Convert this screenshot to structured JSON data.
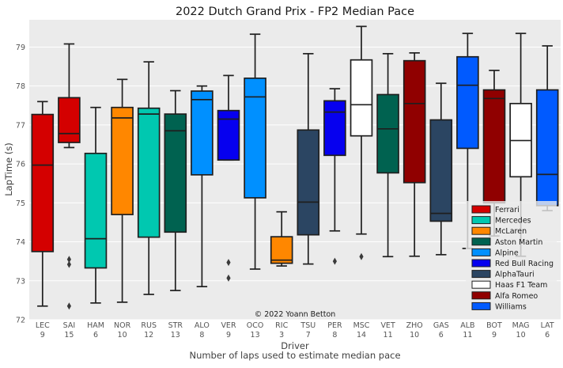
{
  "chart_data": {
    "type": "boxplot",
    "title": "2022 Dutch Grand Prix - FP2 Median Pace",
    "ylabel": "LapTime (s)",
    "xlabel": "Driver",
    "xlabel2": "Number of laps used to estimate median pace",
    "ylim": [
      72,
      79.7
    ],
    "yticks": [
      72,
      73,
      74,
      75,
      76,
      77,
      78,
      79
    ],
    "grid": true,
    "legend_position": "bottom-right",
    "credit": "© 2022 Yoann Betton",
    "teams": [
      {
        "name": "Ferrari",
        "color": "#d40000"
      },
      {
        "name": "Mercedes",
        "color": "#00c8b0"
      },
      {
        "name": "McLaren",
        "color": "#ff8700"
      },
      {
        "name": "Aston Martin",
        "color": "#006250"
      },
      {
        "name": "Alpine",
        "color": "#0090ff"
      },
      {
        "name": "Red Bull Racing",
        "color": "#0600ef"
      },
      {
        "name": "AlphaTauri",
        "color": "#2b4562"
      },
      {
        "name": "Haas F1 Team",
        "color": "#ffffff"
      },
      {
        "name": "Alfa Romeo",
        "color": "#900000"
      },
      {
        "name": "Williams",
        "color": "#005aff"
      }
    ],
    "drivers": [
      {
        "driver": "LEC",
        "laps": "9",
        "team": 0,
        "whislo": 72.35,
        "q1": 73.75,
        "med": 75.97,
        "q3": 77.27,
        "whishi": 77.6,
        "fliers": []
      },
      {
        "driver": "SAI",
        "laps": "15",
        "team": 0,
        "whislo": 76.42,
        "q1": 76.55,
        "med": 76.78,
        "q3": 77.7,
        "whishi": 79.08,
        "fliers": [
          72.35,
          73.42,
          73.55
        ]
      },
      {
        "driver": "HAM",
        "laps": "6",
        "team": 1,
        "whislo": 72.43,
        "q1": 73.33,
        "med": 74.08,
        "q3": 76.27,
        "whishi": 77.45,
        "fliers": []
      },
      {
        "driver": "NOR",
        "laps": "10",
        "team": 2,
        "whislo": 72.45,
        "q1": 74.7,
        "med": 77.18,
        "q3": 77.45,
        "whishi": 78.17,
        "fliers": []
      },
      {
        "driver": "RUS",
        "laps": "12",
        "team": 1,
        "whislo": 72.65,
        "q1": 74.12,
        "med": 77.28,
        "q3": 77.43,
        "whishi": 78.62,
        "fliers": []
      },
      {
        "driver": "STR",
        "laps": "13",
        "team": 3,
        "whislo": 72.75,
        "q1": 74.25,
        "med": 76.85,
        "q3": 77.28,
        "whishi": 77.88,
        "fliers": []
      },
      {
        "driver": "ALO",
        "laps": "8",
        "team": 4,
        "whislo": 72.85,
        "q1": 75.72,
        "med": 77.65,
        "q3": 77.87,
        "whishi": 78.0,
        "fliers": []
      },
      {
        "driver": "VER",
        "laps": "9",
        "team": 5,
        "whislo": 76.1,
        "q1": 76.1,
        "med": 77.15,
        "q3": 77.37,
        "whishi": 78.27,
        "fliers": [
          73.07,
          73.47
        ]
      },
      {
        "driver": "OCO",
        "laps": "13",
        "team": 4,
        "whislo": 73.3,
        "q1": 75.13,
        "med": 77.72,
        "q3": 78.2,
        "whishi": 79.33,
        "fliers": []
      },
      {
        "driver": "RIC",
        "laps": "3",
        "team": 2,
        "whislo": 73.38,
        "q1": 73.45,
        "med": 73.53,
        "q3": 74.13,
        "whishi": 74.77,
        "fliers": []
      },
      {
        "driver": "TSU",
        "laps": "7",
        "team": 6,
        "whislo": 73.43,
        "q1": 74.18,
        "med": 75.02,
        "q3": 76.87,
        "whishi": 78.83,
        "fliers": []
      },
      {
        "driver": "PER",
        "laps": "8",
        "team": 5,
        "whislo": 74.28,
        "q1": 76.22,
        "med": 77.33,
        "q3": 77.62,
        "whishi": 77.93,
        "fliers": [
          73.5
        ]
      },
      {
        "driver": "MSC",
        "laps": "14",
        "team": 7,
        "whislo": 74.2,
        "q1": 76.72,
        "med": 77.52,
        "q3": 78.67,
        "whishi": 79.53,
        "fliers": [
          73.62
        ]
      },
      {
        "driver": "VET",
        "laps": "11",
        "team": 3,
        "whislo": 73.62,
        "q1": 75.77,
        "med": 76.9,
        "q3": 77.78,
        "whishi": 78.83,
        "fliers": []
      },
      {
        "driver": "ZHO",
        "laps": "10",
        "team": 8,
        "whislo": 73.63,
        "q1": 75.52,
        "med": 77.55,
        "q3": 78.65,
        "whishi": 78.85,
        "fliers": []
      },
      {
        "driver": "GAS",
        "laps": "6",
        "team": 6,
        "whislo": 73.67,
        "q1": 74.53,
        "med": 74.73,
        "q3": 77.13,
        "whishi": 78.07,
        "fliers": []
      },
      {
        "driver": "ALB",
        "laps": "11",
        "team": 9,
        "whislo": 73.83,
        "q1": 76.4,
        "med": 78.02,
        "q3": 78.75,
        "whishi": 79.35,
        "fliers": []
      },
      {
        "driver": "BOT",
        "laps": "9",
        "team": 8,
        "whislo": 74.15,
        "q1": 75.0,
        "med": 77.68,
        "q3": 77.9,
        "whishi": 78.4,
        "fliers": []
      },
      {
        "driver": "MAG",
        "laps": "10",
        "team": 7,
        "whislo": 73.63,
        "q1": 75.67,
        "med": 76.6,
        "q3": 77.55,
        "whishi": 79.35,
        "fliers": []
      },
      {
        "driver": "LAT",
        "laps": "6",
        "team": 9,
        "whislo": 74.8,
        "q1": 74.93,
        "med": 75.73,
        "q3": 77.9,
        "whishi": 79.03,
        "fliers": []
      }
    ]
  }
}
